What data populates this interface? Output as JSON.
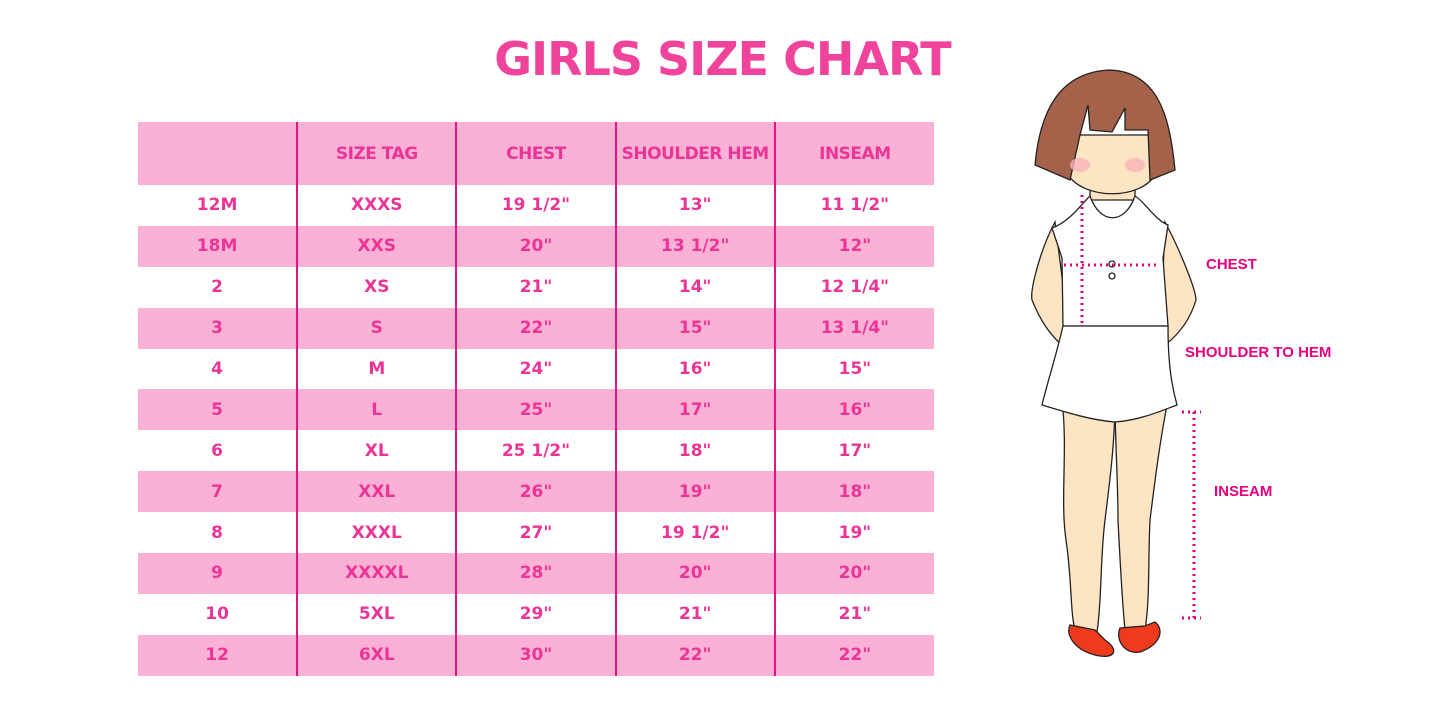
{
  "title": "GIRLS SIZE CHART",
  "table": {
    "headers": [
      "",
      "SIZE TAG",
      "CHEST",
      "SHOULDER HEM",
      "INSEAM"
    ],
    "rows": [
      [
        "12M",
        "XXXS",
        "19 1/2\"",
        "13\"",
        "11 1/2\""
      ],
      [
        "18M",
        "XXS",
        "20\"",
        "13 1/2\"",
        "12\""
      ],
      [
        "2",
        "XS",
        "21\"",
        "14\"",
        "12 1/4\""
      ],
      [
        "3",
        "S",
        "22\"",
        "15\"",
        "13 1/4\""
      ],
      [
        "4",
        "M",
        "24\"",
        "16\"",
        "15\""
      ],
      [
        "5",
        "L",
        "25\"",
        "17\"",
        "16\""
      ],
      [
        "6",
        "XL",
        "25 1/2\"",
        "18\"",
        "17\""
      ],
      [
        "7",
        "XXL",
        "26\"",
        "19\"",
        "18\""
      ],
      [
        "8",
        "XXXL",
        "27\"",
        "19 1/2\"",
        "19\""
      ],
      [
        "9",
        "XXXXL",
        "28\"",
        "20\"",
        "20\""
      ],
      [
        "10",
        "5XL",
        "29\"",
        "21\"",
        "21\""
      ],
      [
        "12",
        "6XL",
        "30\"",
        "22\"",
        "22\""
      ]
    ]
  },
  "figure": {
    "labels": {
      "chest": "CHEST",
      "shoulder_to_hem": "SHOULDER TO HEM",
      "inseam": "INSEAM"
    }
  },
  "colors": {
    "title": "#f0449c",
    "band": "#fbb1d6",
    "divider": "#e0157f",
    "measure": "#e6007e"
  }
}
